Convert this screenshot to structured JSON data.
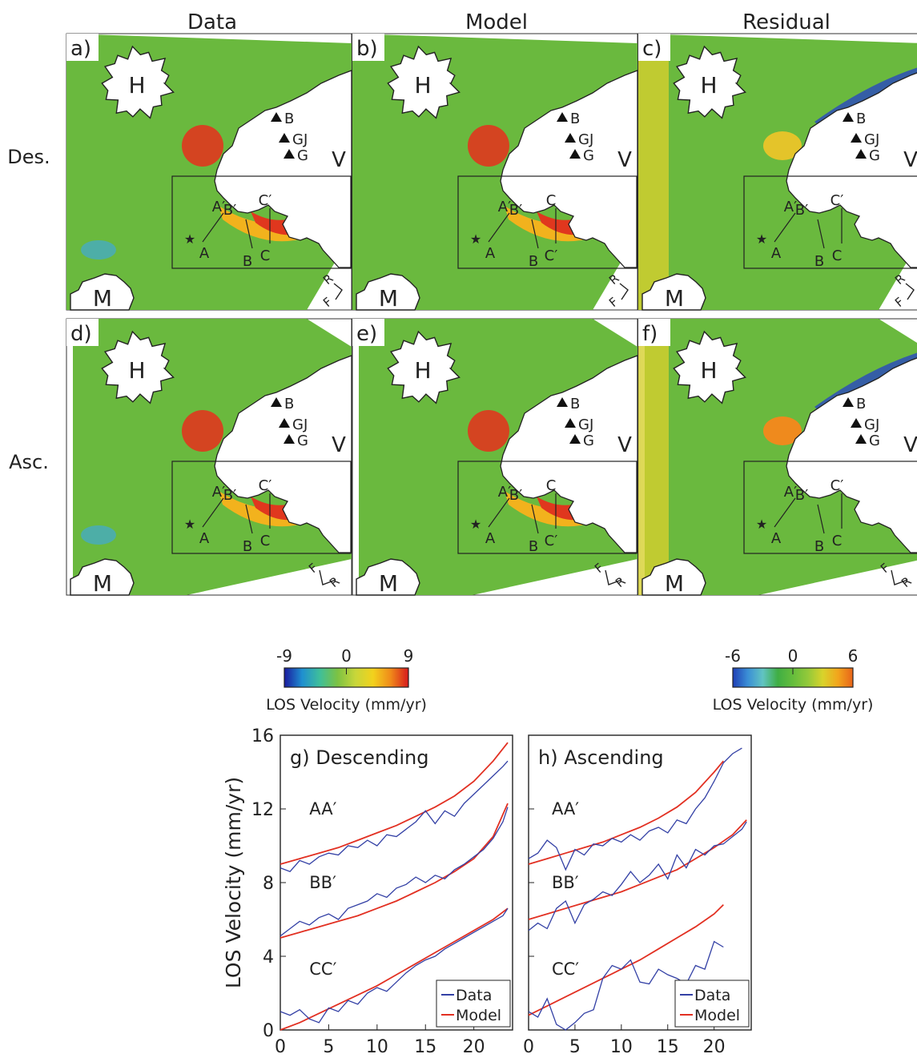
{
  "columns": [
    "Data",
    "Model",
    "Residual"
  ],
  "rows": [
    "Des.",
    "Asc."
  ],
  "panels": [
    {
      "label": "a)",
      "orientation_marks": [
        "R",
        "F"
      ]
    },
    {
      "label": "b)",
      "orientation_marks": [
        "R",
        "F"
      ]
    },
    {
      "label": "c)",
      "orientation_marks": [
        "R",
        "F"
      ]
    },
    {
      "label": "d)",
      "orientation_marks": [
        "F",
        "R"
      ]
    },
    {
      "label": "e)",
      "orientation_marks": [
        "F",
        "R"
      ]
    },
    {
      "label": "f)",
      "orientation_marks": [
        "F",
        "R"
      ]
    }
  ],
  "map_labels": {
    "volcano_h": "H",
    "volcano_m": "M",
    "region_v": "V",
    "stations": [
      "B",
      "GJ",
      "G"
    ],
    "profile_ends": [
      "A",
      "A′",
      "B",
      "B′",
      "C",
      "C′"
    ],
    "star": "★"
  },
  "colorbars": [
    {
      "ticks": [
        "-9",
        "0",
        "9"
      ],
      "label": "LOS Velocity (mm/yr)",
      "colors": [
        "#1a1a9e",
        "#1f8fd0",
        "#3fbf9a",
        "#7cc243",
        "#c7d63a",
        "#f2d21d",
        "#f08a1a",
        "#d7191c"
      ]
    },
    {
      "ticks": [
        "-6",
        "0",
        "6"
      ],
      "label": "LOS Velocity (mm/yr)",
      "colors": [
        "#1f3fb5",
        "#3b8fd6",
        "#61c4c2",
        "#3fae44",
        "#65bd3c",
        "#93c93a",
        "#d9d32b",
        "#f2a51c",
        "#e8641a"
      ]
    }
  ],
  "colors": {
    "data_line": "#3340a5",
    "model_line": "#e23022",
    "map_green": "#6ab93e",
    "hot": "#e0371e",
    "cold": "#2b4db8"
  },
  "chart_data": [
    {
      "type": "line",
      "title": "g) Descending",
      "ylabel": "LOS Velocity (mm/yr)",
      "xlabel": "",
      "xlim": [
        0,
        24
      ],
      "ylim": [
        0,
        16
      ],
      "xticks": [
        0,
        5,
        10,
        15,
        20
      ],
      "yticks": [
        0,
        4,
        8,
        12,
        16
      ],
      "annotations": [
        "AA′",
        "BB′",
        "CC′"
      ],
      "legend": [
        "Data",
        "Model"
      ],
      "legend_position": "bottom-right",
      "series": [
        {
          "name": "Model",
          "profile": "AA′",
          "x": [
            0,
            2,
            4,
            6,
            8,
            10,
            12,
            14,
            16,
            18,
            20,
            22,
            23.5
          ],
          "y": [
            9.0,
            9.3,
            9.6,
            9.9,
            10.3,
            10.7,
            11.1,
            11.6,
            12.1,
            12.7,
            13.5,
            14.6,
            15.6
          ]
        },
        {
          "name": "Data",
          "profile": "AA′",
          "x": [
            0,
            1,
            2,
            3,
            4,
            5,
            6,
            7,
            8,
            9,
            10,
            11,
            12,
            13,
            14,
            15,
            16,
            17,
            18,
            19,
            20,
            21,
            22,
            23,
            23.5
          ],
          "y": [
            8.8,
            8.6,
            9.2,
            9.0,
            9.4,
            9.6,
            9.5,
            10.0,
            9.9,
            10.3,
            10.0,
            10.6,
            10.5,
            10.9,
            11.3,
            11.9,
            11.2,
            11.9,
            11.6,
            12.3,
            12.8,
            13.3,
            13.8,
            14.3,
            14.6
          ]
        },
        {
          "name": "Model",
          "profile": "BB′",
          "x": [
            0,
            2,
            4,
            6,
            8,
            10,
            12,
            14,
            16,
            18,
            20,
            22,
            23.5
          ],
          "y": [
            5.0,
            5.3,
            5.6,
            5.9,
            6.2,
            6.6,
            7.0,
            7.5,
            8.0,
            8.6,
            9.3,
            10.5,
            12.3
          ]
        },
        {
          "name": "Data",
          "profile": "BB′",
          "x": [
            0,
            1,
            2,
            3,
            4,
            5,
            6,
            7,
            8,
            9,
            10,
            11,
            12,
            13,
            14,
            15,
            16,
            17,
            18,
            19,
            20,
            21,
            22,
            23,
            23.5
          ],
          "y": [
            5.1,
            5.5,
            5.9,
            5.7,
            6.1,
            6.3,
            6.0,
            6.6,
            6.8,
            7.0,
            7.4,
            7.2,
            7.7,
            7.9,
            8.3,
            8.0,
            8.4,
            8.2,
            8.7,
            9.0,
            9.4,
            9.8,
            10.4,
            11.3,
            12.1
          ]
        },
        {
          "name": "Model",
          "profile": "CC′",
          "x": [
            0,
            2,
            4,
            6,
            8,
            10,
            12,
            14,
            16,
            18,
            20,
            22,
            23.5
          ],
          "y": [
            0.0,
            0.4,
            0.9,
            1.4,
            1.9,
            2.4,
            3.0,
            3.6,
            4.2,
            4.8,
            5.4,
            6.0,
            6.6
          ]
        },
        {
          "name": "Data",
          "profile": "CC′",
          "x": [
            0,
            1,
            2,
            3,
            4,
            5,
            6,
            7,
            8,
            9,
            10,
            11,
            12,
            13,
            14,
            15,
            16,
            17,
            18,
            19,
            20,
            21,
            22,
            23,
            23.5
          ],
          "y": [
            1.0,
            0.8,
            1.1,
            0.6,
            0.4,
            1.2,
            1.0,
            1.6,
            1.4,
            2.0,
            2.3,
            2.1,
            2.6,
            3.1,
            3.5,
            3.8,
            4.0,
            4.4,
            4.7,
            5.0,
            5.3,
            5.6,
            5.9,
            6.2,
            6.6
          ]
        }
      ]
    },
    {
      "type": "line",
      "title": "h) Ascending",
      "ylabel": "",
      "xlabel": "",
      "xlim": [
        0,
        24
      ],
      "ylim": [
        0,
        16
      ],
      "xticks": [
        0,
        5,
        10,
        15,
        20
      ],
      "yticks": [
        0,
        4,
        8,
        12,
        16
      ],
      "annotations": [
        "AA′",
        "BB′",
        "CC′"
      ],
      "legend": [
        "Data",
        "Model"
      ],
      "legend_position": "bottom-right",
      "series": [
        {
          "name": "Model",
          "profile": "AA′",
          "x": [
            0,
            2,
            4,
            6,
            8,
            10,
            12,
            14,
            16,
            18,
            20,
            21
          ],
          "y": [
            9.0,
            9.3,
            9.6,
            9.9,
            10.2,
            10.6,
            11.0,
            11.5,
            12.1,
            12.9,
            14.0,
            14.6
          ]
        },
        {
          "name": "Data",
          "profile": "AA′",
          "x": [
            0,
            1,
            2,
            3,
            4,
            5,
            6,
            7,
            8,
            9,
            10,
            11,
            12,
            13,
            14,
            15,
            16,
            17,
            18,
            19,
            20,
            21,
            22,
            23
          ],
          "y": [
            9.3,
            9.6,
            10.3,
            9.9,
            8.7,
            9.8,
            9.5,
            10.1,
            10.0,
            10.4,
            10.2,
            10.6,
            10.3,
            10.8,
            11.0,
            10.7,
            11.4,
            11.2,
            12.0,
            12.6,
            13.5,
            14.5,
            15.0,
            15.3
          ]
        },
        {
          "name": "Model",
          "profile": "BB′",
          "x": [
            0,
            2,
            4,
            6,
            8,
            10,
            12,
            14,
            16,
            18,
            20,
            22,
            23.5
          ],
          "y": [
            6.0,
            6.3,
            6.6,
            6.9,
            7.2,
            7.5,
            7.9,
            8.3,
            8.7,
            9.3,
            9.9,
            10.6,
            11.4
          ]
        },
        {
          "name": "Data",
          "profile": "BB′",
          "x": [
            0,
            1,
            2,
            3,
            4,
            5,
            6,
            7,
            8,
            9,
            10,
            11,
            12,
            13,
            14,
            15,
            16,
            17,
            18,
            19,
            20,
            21,
            22,
            23,
            23.5
          ],
          "y": [
            5.4,
            5.8,
            5.5,
            6.6,
            7.0,
            5.8,
            6.8,
            7.1,
            7.5,
            7.3,
            7.9,
            8.6,
            8.0,
            8.4,
            9.0,
            8.2,
            9.5,
            8.8,
            9.8,
            9.5,
            10.0,
            10.1,
            10.5,
            10.9,
            11.3
          ]
        },
        {
          "name": "Model",
          "profile": "CC′",
          "x": [
            0,
            2,
            4,
            6,
            8,
            10,
            12,
            14,
            16,
            18,
            20,
            21
          ],
          "y": [
            0.8,
            1.3,
            1.8,
            2.3,
            2.8,
            3.3,
            3.8,
            4.4,
            5.0,
            5.6,
            6.3,
            6.8
          ]
        },
        {
          "name": "Data",
          "profile": "CC′",
          "x": [
            0,
            1,
            2,
            3,
            4,
            5,
            6,
            7,
            8,
            9,
            10,
            11,
            12,
            13,
            14,
            15,
            16,
            17,
            18,
            19,
            20,
            21
          ],
          "y": [
            1.0,
            0.7,
            1.7,
            0.3,
            0.0,
            0.4,
            0.9,
            1.1,
            2.8,
            3.5,
            3.3,
            3.8,
            2.6,
            2.5,
            3.3,
            3.0,
            2.8,
            2.5,
            3.5,
            3.3,
            4.8,
            4.5
          ]
        }
      ]
    }
  ]
}
